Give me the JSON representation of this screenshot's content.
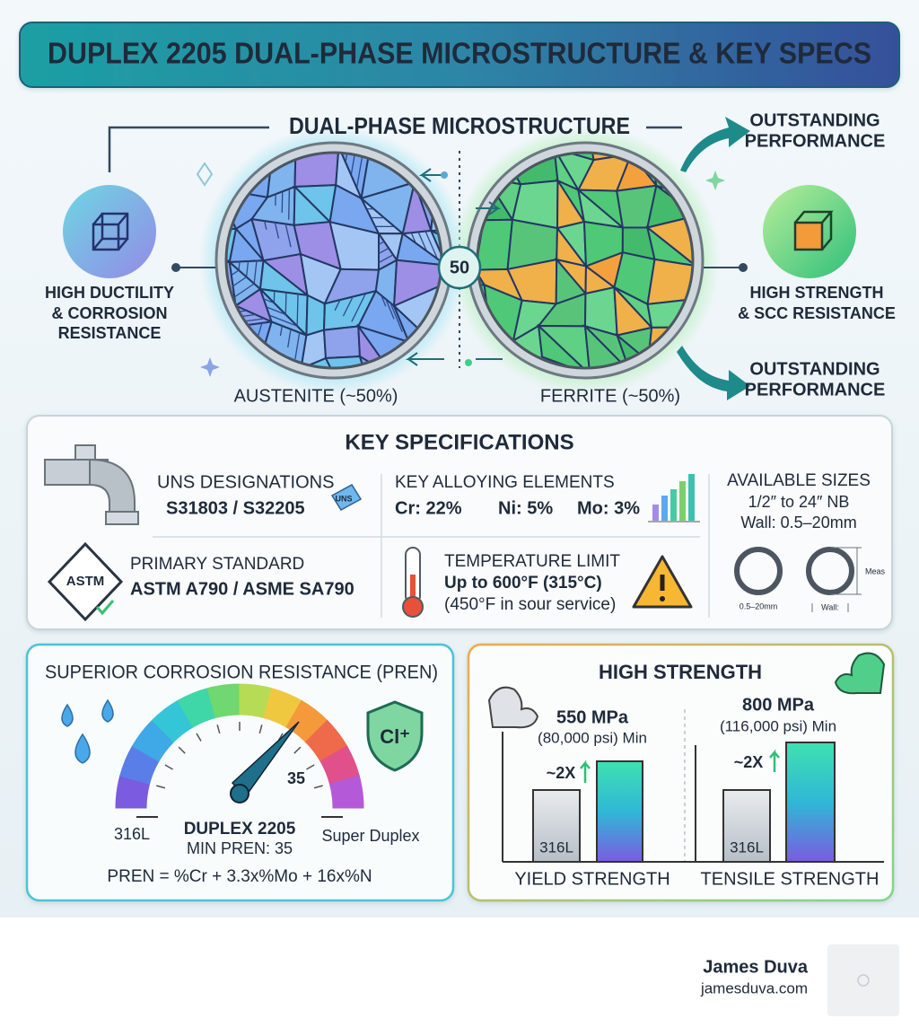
{
  "header": {
    "title": "DUPLEX 2205 DUAL-PHASE MICROSTRUCTURE & KEY SPECS"
  },
  "microstructure": {
    "title": "DUAL-PHASE MICROSTRUCTURE",
    "center_label": "50",
    "austenite": {
      "label": "AUSTENITE (~50%)",
      "property_lines": [
        "HIGH DUCTILITY",
        "& CORROSION",
        "RESISTANCE"
      ]
    },
    "ferrite": {
      "label": "FERRITE (~50%)",
      "property_lines": [
        "HIGH STRENGTH",
        "& SCC RESISTANCE"
      ]
    },
    "callouts": [
      {
        "lines": [
          "OUTSTANDING",
          "PERFORMANCE"
        ]
      },
      {
        "lines": [
          "OUTSTANDING",
          "PERFORMANCE"
        ]
      }
    ]
  },
  "specifications": {
    "title": "KEY SPECIFICATIONS",
    "uns": {
      "label": "UNS DESIGNATIONS",
      "value": "S31803 / S32205",
      "tag": "UNS"
    },
    "alloying": {
      "label": "KEY ALLOYING ELEMENTS",
      "elements": [
        "Cr: 22%",
        "Ni: 5%",
        "Mo: 3%"
      ]
    },
    "sizes": {
      "label": "AVAILABLE SIZES",
      "range": "1/2″ to 24″ NB",
      "wall": "Wall: 0.5–20mm",
      "diagram_labels": [
        "0.5–20mm",
        "Wall:",
        "Meas"
      ]
    },
    "standard": {
      "label": "PRIMARY STANDARD",
      "value": "ASTM A790 / ASME SA790",
      "logo": "ASTM"
    },
    "temperature": {
      "label": "TEMPERATURE LIMIT",
      "value": "Up to 600°F (315°C)",
      "note": "(450°F in sour service)"
    }
  },
  "corrosion": {
    "title": "SUPERIOR CORROSION RESISTANCE (PREN)",
    "gauge_min": "316L",
    "gauge_mark": "35",
    "gauge_max": "Super Duplex",
    "grade": "DUPLEX 2205",
    "min_pren": "MIN PREN: 35",
    "formula": "PREN = %Cr + 3.3x%Mo + 16x%N",
    "shield": "Cl⁺"
  },
  "strength": {
    "title": "HIGH STRENGTH",
    "groups": [
      {
        "value": "550 MPa",
        "psi": "(80,000 psi) Min",
        "multiplier": "~2X",
        "baseline": "316L",
        "label": "YIELD STRENGTH"
      },
      {
        "value": "800 MPa",
        "psi": "(116,000 psi) Min",
        "multiplier": "~2X",
        "baseline": "316L",
        "label": "TENSILE STRENGTH"
      }
    ]
  },
  "footer": {
    "name": "James Duva",
    "site": "jamesduva.com"
  }
}
